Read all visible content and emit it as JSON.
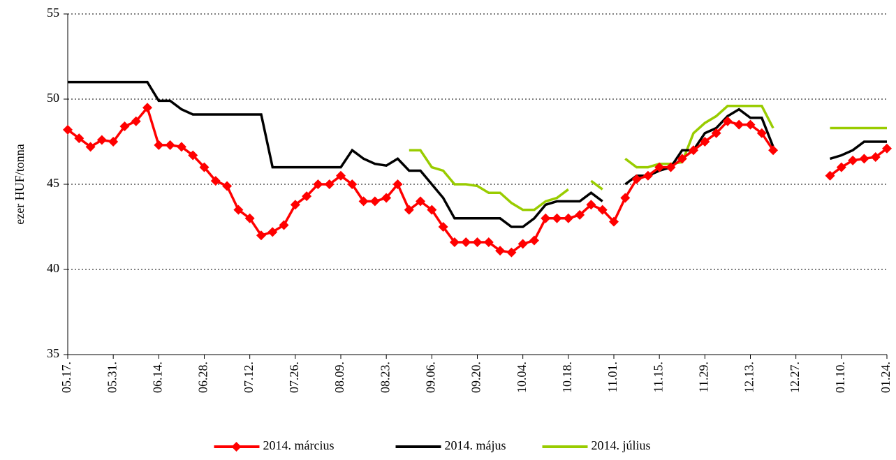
{
  "chart_data": {
    "type": "line",
    "y_label": "ezer HUF/tonna",
    "categories": [
      "05.17.",
      null,
      null,
      null,
      "05.31.",
      null,
      null,
      null,
      "06.14.",
      null,
      null,
      null,
      "06.28.",
      null,
      null,
      null,
      "07.12.",
      null,
      null,
      null,
      "07.26.",
      null,
      null,
      null,
      "08.09.",
      null,
      null,
      null,
      "08.23.",
      null,
      null,
      null,
      "09.06.",
      null,
      null,
      null,
      "09.20.",
      null,
      null,
      null,
      "10.04.",
      null,
      null,
      null,
      "10.18.",
      null,
      null,
      null,
      "11.01.",
      null,
      null,
      null,
      "11.15.",
      null,
      null,
      null,
      "11.29.",
      null,
      null,
      null,
      "12.13.",
      null,
      null,
      null,
      "12.27.",
      null,
      null,
      null,
      "01.10.",
      null,
      null,
      null,
      "01.24."
    ],
    "series": [
      {
        "name": "2014. március",
        "color": "#ff0000",
        "marker": "diamond",
        "values": [
          48.2,
          47.7,
          47.2,
          47.6,
          47.5,
          48.4,
          48.7,
          49.5,
          47.3,
          47.3,
          47.2,
          46.7,
          46.0,
          45.2,
          44.9,
          43.5,
          43.0,
          42.0,
          42.2,
          42.6,
          43.8,
          44.3,
          45.0,
          45.0,
          45.5,
          45.0,
          44.0,
          44.0,
          44.2,
          45.0,
          43.5,
          44.0,
          43.5,
          42.5,
          41.6,
          41.6,
          41.6,
          41.6,
          41.1,
          41.0,
          41.5,
          41.7,
          43.0,
          43.0,
          43.0,
          43.2,
          43.8,
          43.5,
          42.8,
          44.2,
          45.3,
          45.5,
          46.0,
          46.0,
          46.5,
          47.0,
          47.5,
          48.0,
          48.7,
          48.5,
          48.5,
          48.0,
          47.0,
          null,
          null,
          null,
          null,
          45.5,
          46.0,
          46.4,
          46.5,
          46.6,
          47.1
        ]
      },
      {
        "name": "2014. május",
        "color": "#000000",
        "values": [
          51.0,
          51.0,
          51.0,
          51.0,
          51.0,
          51.0,
          51.0,
          51.0,
          49.9,
          49.9,
          49.4,
          49.1,
          49.1,
          49.1,
          49.1,
          49.1,
          49.1,
          49.1,
          46.0,
          46.0,
          46.0,
          46.0,
          46.0,
          46.0,
          46.0,
          47.0,
          46.5,
          46.2,
          46.1,
          46.5,
          45.8,
          45.8,
          45.0,
          44.2,
          43.0,
          43.0,
          43.0,
          43.0,
          43.0,
          42.5,
          42.5,
          43.0,
          43.8,
          44.0,
          44.0,
          44.0,
          44.5,
          44.0,
          null,
          45.0,
          45.5,
          45.5,
          45.8,
          46.0,
          47.0,
          47.0,
          48.0,
          48.3,
          49.0,
          49.4,
          48.9,
          48.9,
          47.2,
          null,
          null,
          null,
          null,
          46.5,
          46.7,
          47.0,
          47.5,
          47.5,
          47.5
        ]
      },
      {
        "name": "2014. július",
        "color": "#99cc00",
        "values": [
          null,
          null,
          null,
          null,
          null,
          null,
          null,
          null,
          null,
          null,
          null,
          null,
          null,
          null,
          null,
          null,
          null,
          null,
          null,
          null,
          null,
          null,
          null,
          null,
          null,
          null,
          null,
          null,
          null,
          null,
          47.0,
          47.0,
          46.0,
          45.8,
          45.0,
          45.0,
          44.9,
          44.5,
          44.5,
          43.9,
          43.5,
          43.5,
          44.0,
          44.2,
          44.7,
          null,
          45.2,
          44.7,
          null,
          46.5,
          46.0,
          46.0,
          46.2,
          46.2,
          46.3,
          48.0,
          48.6,
          49.0,
          49.6,
          49.6,
          49.6,
          49.6,
          48.3,
          null,
          null,
          null,
          null,
          48.3,
          48.3,
          48.3,
          48.3,
          48.3,
          48.3
        ]
      }
    ],
    "ylim": [
      35,
      55
    ],
    "yticks": [
      35,
      40,
      45,
      50,
      55
    ],
    "grid": true,
    "legend": "bottom"
  }
}
